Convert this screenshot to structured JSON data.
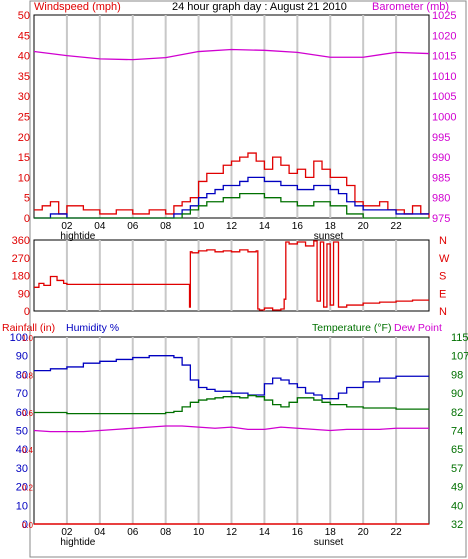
{
  "header": {
    "left_label": "Windspeed (mph)",
    "title": "24 hour graph day : August 21 2010",
    "right_label": "Barometer (mb)"
  },
  "colors": {
    "red": "#e00000",
    "blue": "#0000c0",
    "green": "#007000",
    "magenta": "#d000d0",
    "grid": "#c8c8c8",
    "frame": "#000000"
  },
  "xaxis": {
    "hour_labels": [
      "02",
      "04",
      "06",
      "08",
      "10",
      "12",
      "14",
      "16",
      "18",
      "20",
      "22"
    ],
    "hour_values": [
      2,
      4,
      6,
      8,
      10,
      12,
      14,
      16,
      18,
      20,
      22
    ],
    "hightide_label": "hightide",
    "sunset_label": "sunset"
  },
  "chart_data": [
    {
      "type": "line",
      "panel": "wind-barometer",
      "title": "24 hour graph day : August 21 2010",
      "xlim": [
        0,
        24
      ],
      "y_left": {
        "label": "Windspeed (mph)",
        "ticks": [
          0,
          5,
          10,
          15,
          20,
          25,
          30,
          35,
          40,
          45,
          50
        ],
        "lim": [
          0,
          50
        ]
      },
      "y_right": {
        "label": "Barometer (mb)",
        "ticks": [
          975,
          980,
          985,
          990,
          995,
          1000,
          1005,
          1010,
          1015,
          1020,
          1025
        ],
        "lim": [
          975,
          1025
        ]
      },
      "series": [
        {
          "name": "Barometer (mb)",
          "axis": "right",
          "color": "#d000d0",
          "x": [
            0,
            2,
            4,
            6,
            8,
            10,
            12,
            14,
            16,
            18,
            20,
            22,
            24
          ],
          "y": [
            1016.0,
            1015.0,
            1014.2,
            1014.0,
            1014.5,
            1016.0,
            1016.5,
            1016.3,
            1015.8,
            1014.6,
            1014.6,
            1015.8,
            1015.5
          ]
        },
        {
          "name": "Wind gust",
          "axis": "left",
          "color": "#e00000",
          "x": [
            0,
            0.5,
            1,
            1.5,
            2,
            3,
            4,
            5,
            6,
            7,
            8,
            8.5,
            9,
            9.5,
            10,
            10.5,
            11,
            11.5,
            12,
            12.5,
            13,
            13.5,
            14,
            14.5,
            15,
            15.5,
            16,
            16.5,
            17,
            17.5,
            18,
            18.5,
            19,
            19.5,
            20,
            20.5,
            21,
            21.5,
            22,
            22.5,
            23,
            23.5,
            24
          ],
          "y": [
            2,
            3,
            4,
            1,
            3,
            2,
            1,
            2,
            1,
            2,
            1,
            3,
            4,
            5,
            9,
            11,
            11,
            13,
            14,
            15,
            16,
            14,
            12,
            15,
            13,
            11,
            12,
            10,
            14,
            12,
            10,
            10,
            8,
            4,
            3,
            3,
            4,
            2,
            2,
            1,
            3,
            1,
            0
          ]
        },
        {
          "name": "Wind average",
          "axis": "left",
          "color": "#0000c0",
          "x": [
            0,
            1,
            2,
            3,
            4,
            5,
            6,
            7,
            8,
            8.5,
            9,
            9.5,
            10,
            10.5,
            11,
            11.5,
            12,
            12.5,
            13,
            13.5,
            14,
            14.5,
            15,
            15.5,
            16,
            16.5,
            17,
            17.5,
            18,
            18.5,
            19,
            19.5,
            20,
            21,
            22,
            23,
            24
          ],
          "y": [
            0,
            1,
            0,
            0,
            0,
            0,
            0,
            0,
            0,
            1,
            2,
            3,
            5,
            6,
            7,
            8,
            8,
            9,
            10,
            10,
            9,
            9,
            8,
            8,
            7,
            7,
            8,
            8,
            7,
            6,
            4,
            3,
            2,
            2,
            1,
            1,
            1
          ]
        },
        {
          "name": "Wind low",
          "axis": "left",
          "color": "#007000",
          "x": [
            0,
            2,
            4,
            6,
            8,
            8.5,
            9,
            9.5,
            10,
            10.5,
            11,
            11.5,
            12,
            12.5,
            13,
            13.5,
            14,
            14.5,
            15,
            15.5,
            16,
            16.5,
            17,
            17.5,
            18,
            18.5,
            19,
            20,
            22,
            24
          ],
          "y": [
            0,
            0,
            0,
            0,
            0,
            0,
            1,
            2,
            3,
            4,
            4,
            5,
            5,
            6,
            6,
            6,
            5,
            5,
            4,
            4,
            3,
            3,
            4,
            4,
            3,
            3,
            1,
            0,
            0,
            0
          ]
        }
      ]
    },
    {
      "type": "line",
      "panel": "wind-direction",
      "xlim": [
        0,
        24
      ],
      "y_left": {
        "ticks": [
          0,
          90,
          180,
          270,
          360
        ],
        "lim": [
          0,
          360
        ]
      },
      "y_right": {
        "labels": [
          "N",
          "W",
          "S",
          "E",
          "N"
        ]
      },
      "series": [
        {
          "name": "Wind direction",
          "color": "#e00000",
          "x": [
            0,
            0.3,
            0.6,
            1,
            1.4,
            1.8,
            2,
            4,
            6,
            8,
            9.4,
            9.45,
            9.5,
            9.6,
            10,
            10.5,
            11,
            11.5,
            12,
            12.5,
            13,
            13.5,
            13.6,
            13.7,
            14,
            14.5,
            15,
            15.2,
            15.3,
            15.5,
            16,
            16.5,
            17,
            17.2,
            17.4,
            17.6,
            17.8,
            18,
            18.2,
            18.5,
            19,
            20,
            21,
            22,
            23,
            24
          ],
          "y": [
            120,
            140,
            130,
            175,
            155,
            140,
            135,
            135,
            135,
            135,
            135,
            20,
            300,
            295,
            305,
            310,
            300,
            305,
            300,
            310,
            300,
            305,
            10,
            5,
            15,
            5,
            10,
            60,
            350,
            340,
            350,
            330,
            355,
            50,
            350,
            20,
            340,
            30,
            350,
            20,
            30,
            40,
            45,
            50,
            55,
            55
          ]
        }
      ]
    },
    {
      "type": "line",
      "panel": "rain-humidity-temperature",
      "xlim": [
        0,
        24
      ],
      "y_left": {
        "labels": [
          "Rainfall (in)",
          "Humidity %"
        ],
        "ticks": [
          0,
          10,
          20,
          30,
          40,
          50,
          60,
          70,
          80,
          90,
          100
        ],
        "rain_ticks": [
          0.0,
          0.2,
          0.4,
          0.6,
          0.8,
          1.0
        ],
        "lim": [
          0,
          100
        ]
      },
      "y_right": {
        "labels": [
          "Temperature (°F)",
          "Dew Point"
        ],
        "ticks": [
          32,
          40,
          49,
          57,
          65,
          74,
          82,
          90,
          98,
          107,
          115
        ],
        "lim": [
          32,
          115
        ]
      },
      "series": [
        {
          "name": "Humidity %",
          "axis": "left",
          "color": "#0000c0",
          "x": [
            0,
            1,
            2,
            3,
            4,
            5,
            6,
            7,
            8,
            8.5,
            9,
            9.5,
            10,
            10.5,
            11,
            11.5,
            12,
            12.5,
            13,
            13.5,
            14,
            14.5,
            15,
            15.5,
            16,
            16.5,
            17,
            17.5,
            18,
            18.5,
            19,
            20,
            21,
            22,
            23,
            24
          ],
          "y": [
            82,
            83,
            84,
            86,
            87,
            88,
            89,
            90,
            90,
            89,
            85,
            77,
            73,
            72,
            71,
            71,
            70,
            70,
            69,
            69,
            75,
            78,
            77,
            75,
            73,
            70,
            69,
            67,
            67,
            70,
            73,
            76,
            78,
            79,
            79,
            79
          ]
        },
        {
          "name": "Temperature (°F)",
          "axis": "right",
          "color": "#007000",
          "x": [
            0,
            1,
            2,
            3,
            4,
            5,
            6,
            7,
            8,
            8.5,
            9,
            9.5,
            10,
            10.5,
            11,
            11.5,
            12,
            12.5,
            13,
            13.5,
            14,
            14.5,
            15,
            15.5,
            16,
            16.5,
            17,
            17.5,
            18,
            18.5,
            19,
            20,
            21,
            22,
            23,
            24
          ],
          "y": [
            81.5,
            81.5,
            81,
            81,
            81,
            81,
            81,
            81,
            81.5,
            82,
            84,
            86,
            87,
            87.5,
            88,
            88.5,
            88.5,
            88,
            89,
            88.5,
            87,
            85,
            84,
            86,
            88,
            88,
            87,
            86,
            85,
            85,
            84,
            83.5,
            83.5,
            83,
            83,
            83
          ]
        },
        {
          "name": "Dew Point",
          "axis": "right",
          "color": "#d000d0",
          "x": [
            0,
            1,
            2,
            3,
            4,
            5,
            6,
            7,
            8,
            9,
            10,
            11,
            12,
            13,
            14,
            15,
            16,
            17,
            18,
            19,
            20,
            21,
            22,
            23,
            24
          ],
          "y": [
            73.5,
            73,
            73,
            73,
            73.5,
            74,
            74.5,
            75,
            75.5,
            75.5,
            75,
            74.5,
            75,
            74,
            74,
            75,
            74.5,
            74,
            73.5,
            74,
            74,
            74,
            74.5,
            74.5,
            74.5
          ]
        },
        {
          "name": "Rainfall (in)",
          "axis": "left",
          "color": "#e00000",
          "x": [
            0,
            24
          ],
          "y": [
            0,
            0
          ]
        }
      ]
    }
  ]
}
